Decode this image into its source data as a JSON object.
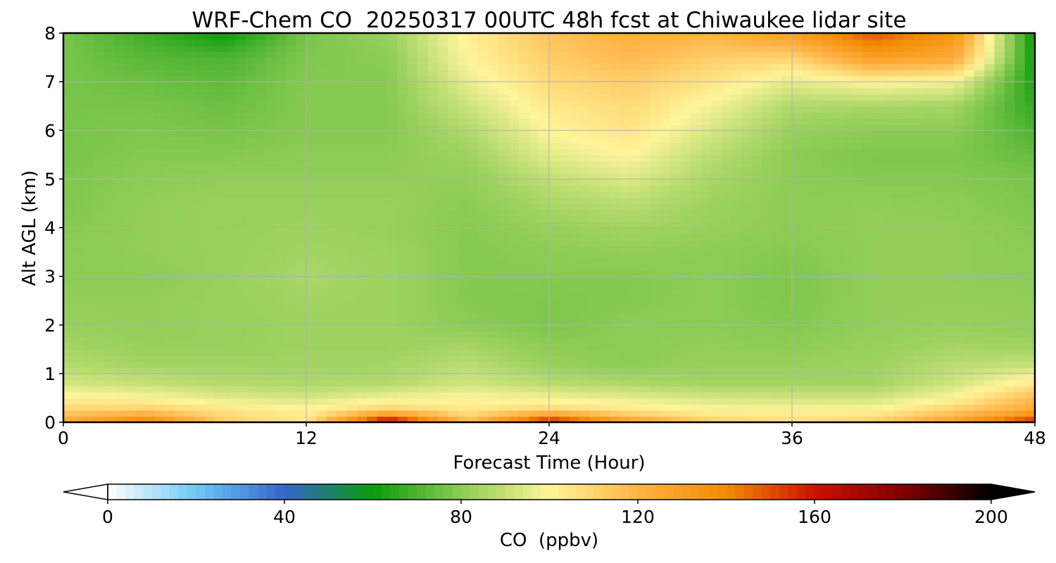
{
  "chart_data": {
    "type": "heatmap",
    "title": "WRF-Chem CO  20250317 00UTC 48h fcst at Chiwaukee lidar site",
    "xlabel": "Forecast Time (Hour)",
    "ylabel": "Alt AGL (km)",
    "xlim": [
      0,
      48
    ],
    "ylim": [
      0,
      8
    ],
    "xticks": [
      "0",
      "12",
      "24",
      "36",
      "48"
    ],
    "yticks": [
      "0",
      "1",
      "2",
      "3",
      "4",
      "5",
      "6",
      "7",
      "8"
    ],
    "grid": true,
    "x": [
      0,
      4,
      8,
      12,
      16,
      20,
      24,
      28,
      32,
      36,
      40,
      44,
      48
    ],
    "y": [
      0,
      0.25,
      0.5,
      0.8,
      1.2,
      1.6,
      2,
      2.5,
      3,
      3.5,
      4,
      4.5,
      5,
      5.5,
      6,
      6.5,
      7,
      7.5,
      8
    ],
    "z": [
      [
        128,
        145,
        112,
        104,
        172,
        118,
        165,
        130,
        112,
        108,
        112,
        130,
        160
      ],
      [
        110,
        112,
        106,
        101,
        112,
        104,
        110,
        104,
        100,
        100,
        100,
        112,
        125
      ],
      [
        102,
        100,
        95,
        93,
        98,
        100,
        98,
        96,
        93,
        92,
        92,
        100,
        118
      ],
      [
        93,
        90,
        87,
        86,
        87,
        92,
        88,
        86,
        84,
        84,
        84,
        92,
        104
      ],
      [
        87,
        84,
        84,
        84,
        84,
        88,
        82,
        80,
        82,
        82,
        83,
        88,
        90
      ],
      [
        84,
        82,
        82,
        83,
        83,
        84,
        80,
        80,
        81,
        80,
        82,
        84,
        83
      ],
      [
        82,
        81,
        82,
        83,
        83,
        80,
        78,
        80,
        80,
        79,
        81,
        82,
        81
      ],
      [
        81,
        81,
        82,
        84,
        83,
        79,
        78,
        79,
        80,
        78,
        81,
        81,
        81
      ],
      [
        80,
        80,
        82,
        85,
        83,
        79,
        79,
        79,
        80,
        78,
        81,
        81,
        80
      ],
      [
        80,
        81,
        82,
        84,
        83,
        79,
        80,
        81,
        80,
        79,
        81,
        81,
        80
      ],
      [
        79,
        81,
        82,
        83,
        82,
        79,
        82,
        84,
        82,
        80,
        81,
        81,
        79
      ],
      [
        78,
        81,
        82,
        82,
        82,
        80,
        85,
        88,
        83,
        80,
        81,
        80,
        78
      ],
      [
        78,
        80,
        81,
        81,
        81,
        81,
        89,
        94,
        85,
        80,
        79,
        79,
        77
      ],
      [
        77,
        79,
        79,
        80,
        80,
        83,
        95,
        100,
        88,
        80,
        78,
        78,
        74
      ],
      [
        77,
        78,
        77,
        79,
        79,
        86,
        100,
        105,
        93,
        82,
        80,
        80,
        70
      ],
      [
        77,
        77,
        75,
        79,
        79,
        91,
        104,
        108,
        98,
        86,
        85,
        84,
        66
      ],
      [
        77,
        75,
        73,
        79,
        79,
        96,
        108,
        112,
        105,
        95,
        100,
        98,
        62
      ],
      [
        77,
        72,
        70,
        78,
        80,
        100,
        112,
        118,
        112,
        110,
        130,
        125,
        60
      ],
      [
        77,
        68,
        60,
        77,
        82,
        102,
        115,
        122,
        120,
        130,
        150,
        135,
        58
      ]
    ],
    "colorbar": {
      "label": "CO  (ppbv)",
      "min": 0,
      "max": 200,
      "ticks": [
        "0",
        "40",
        "80",
        "120",
        "160",
        "200"
      ],
      "extend": "both",
      "colors": [
        "#ffffff",
        "#6ec8f5",
        "#3565c9",
        "#0b9b0b",
        "#8ccc55",
        "#fff59a",
        "#ffb347",
        "#f28c00",
        "#cc1100",
        "#800000",
        "#000000"
      ]
    }
  }
}
